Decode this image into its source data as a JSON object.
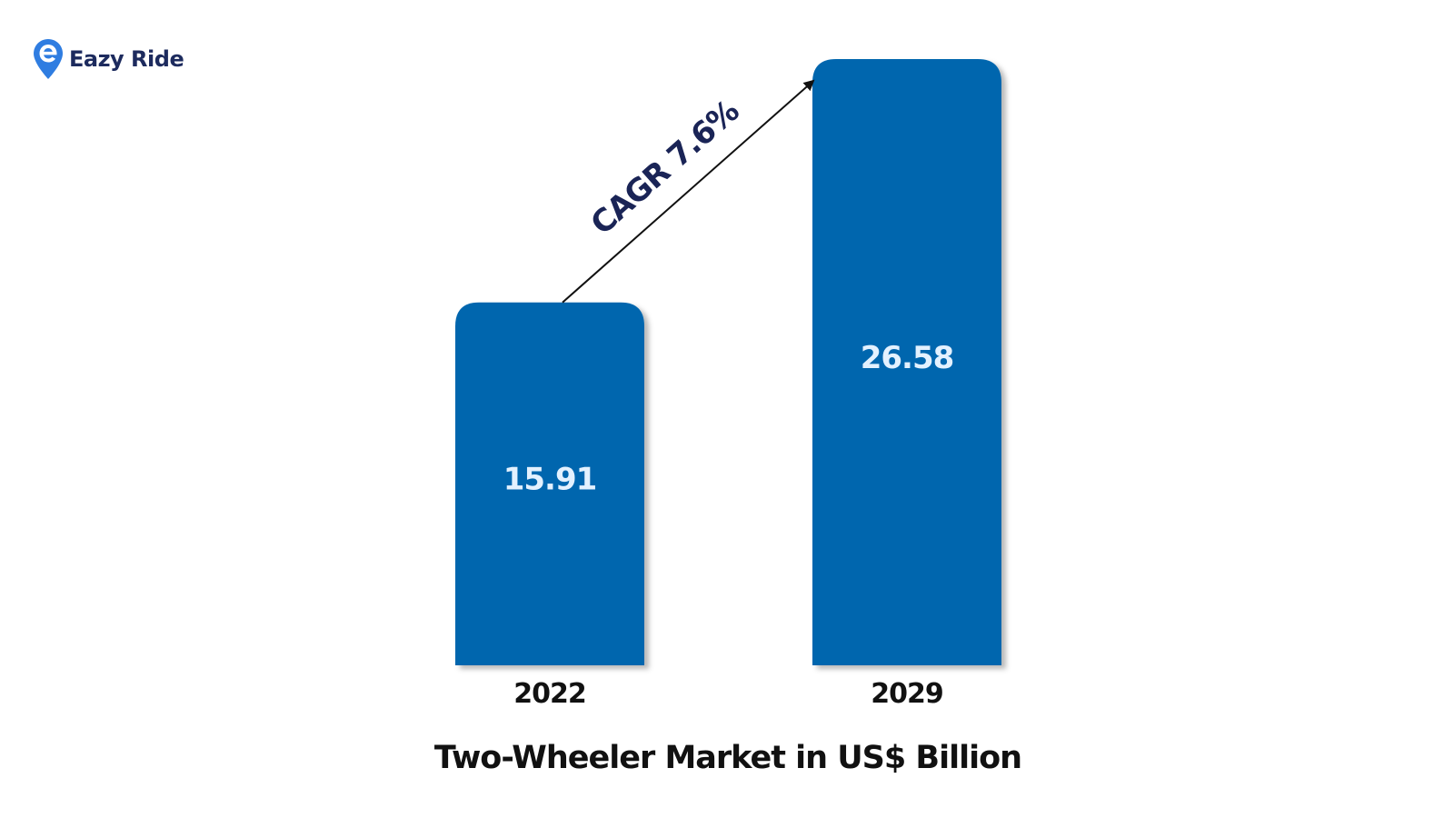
{
  "brand": {
    "name": "Eazy Ride",
    "logo_icon": "map-pin-e-icon",
    "colors": {
      "pin": "#2f7de1",
      "text": "#1d2b5e"
    }
  },
  "chart_data": {
    "type": "bar",
    "title": "Two-Wheeler Market in US$ Billion",
    "xlabel": "",
    "ylabel": "",
    "categories": [
      "2022",
      "2029"
    ],
    "values": [
      15.91,
      26.58
    ],
    "value_labels": [
      "15.91",
      "26.58"
    ],
    "ylim": [
      0,
      26.58
    ],
    "grid": false,
    "legend": "none",
    "bar_color": "#0066ae",
    "annotation": {
      "text": "CAGR 7.6%",
      "type": "arrow",
      "from_category": "2022",
      "to_category": "2029"
    }
  }
}
